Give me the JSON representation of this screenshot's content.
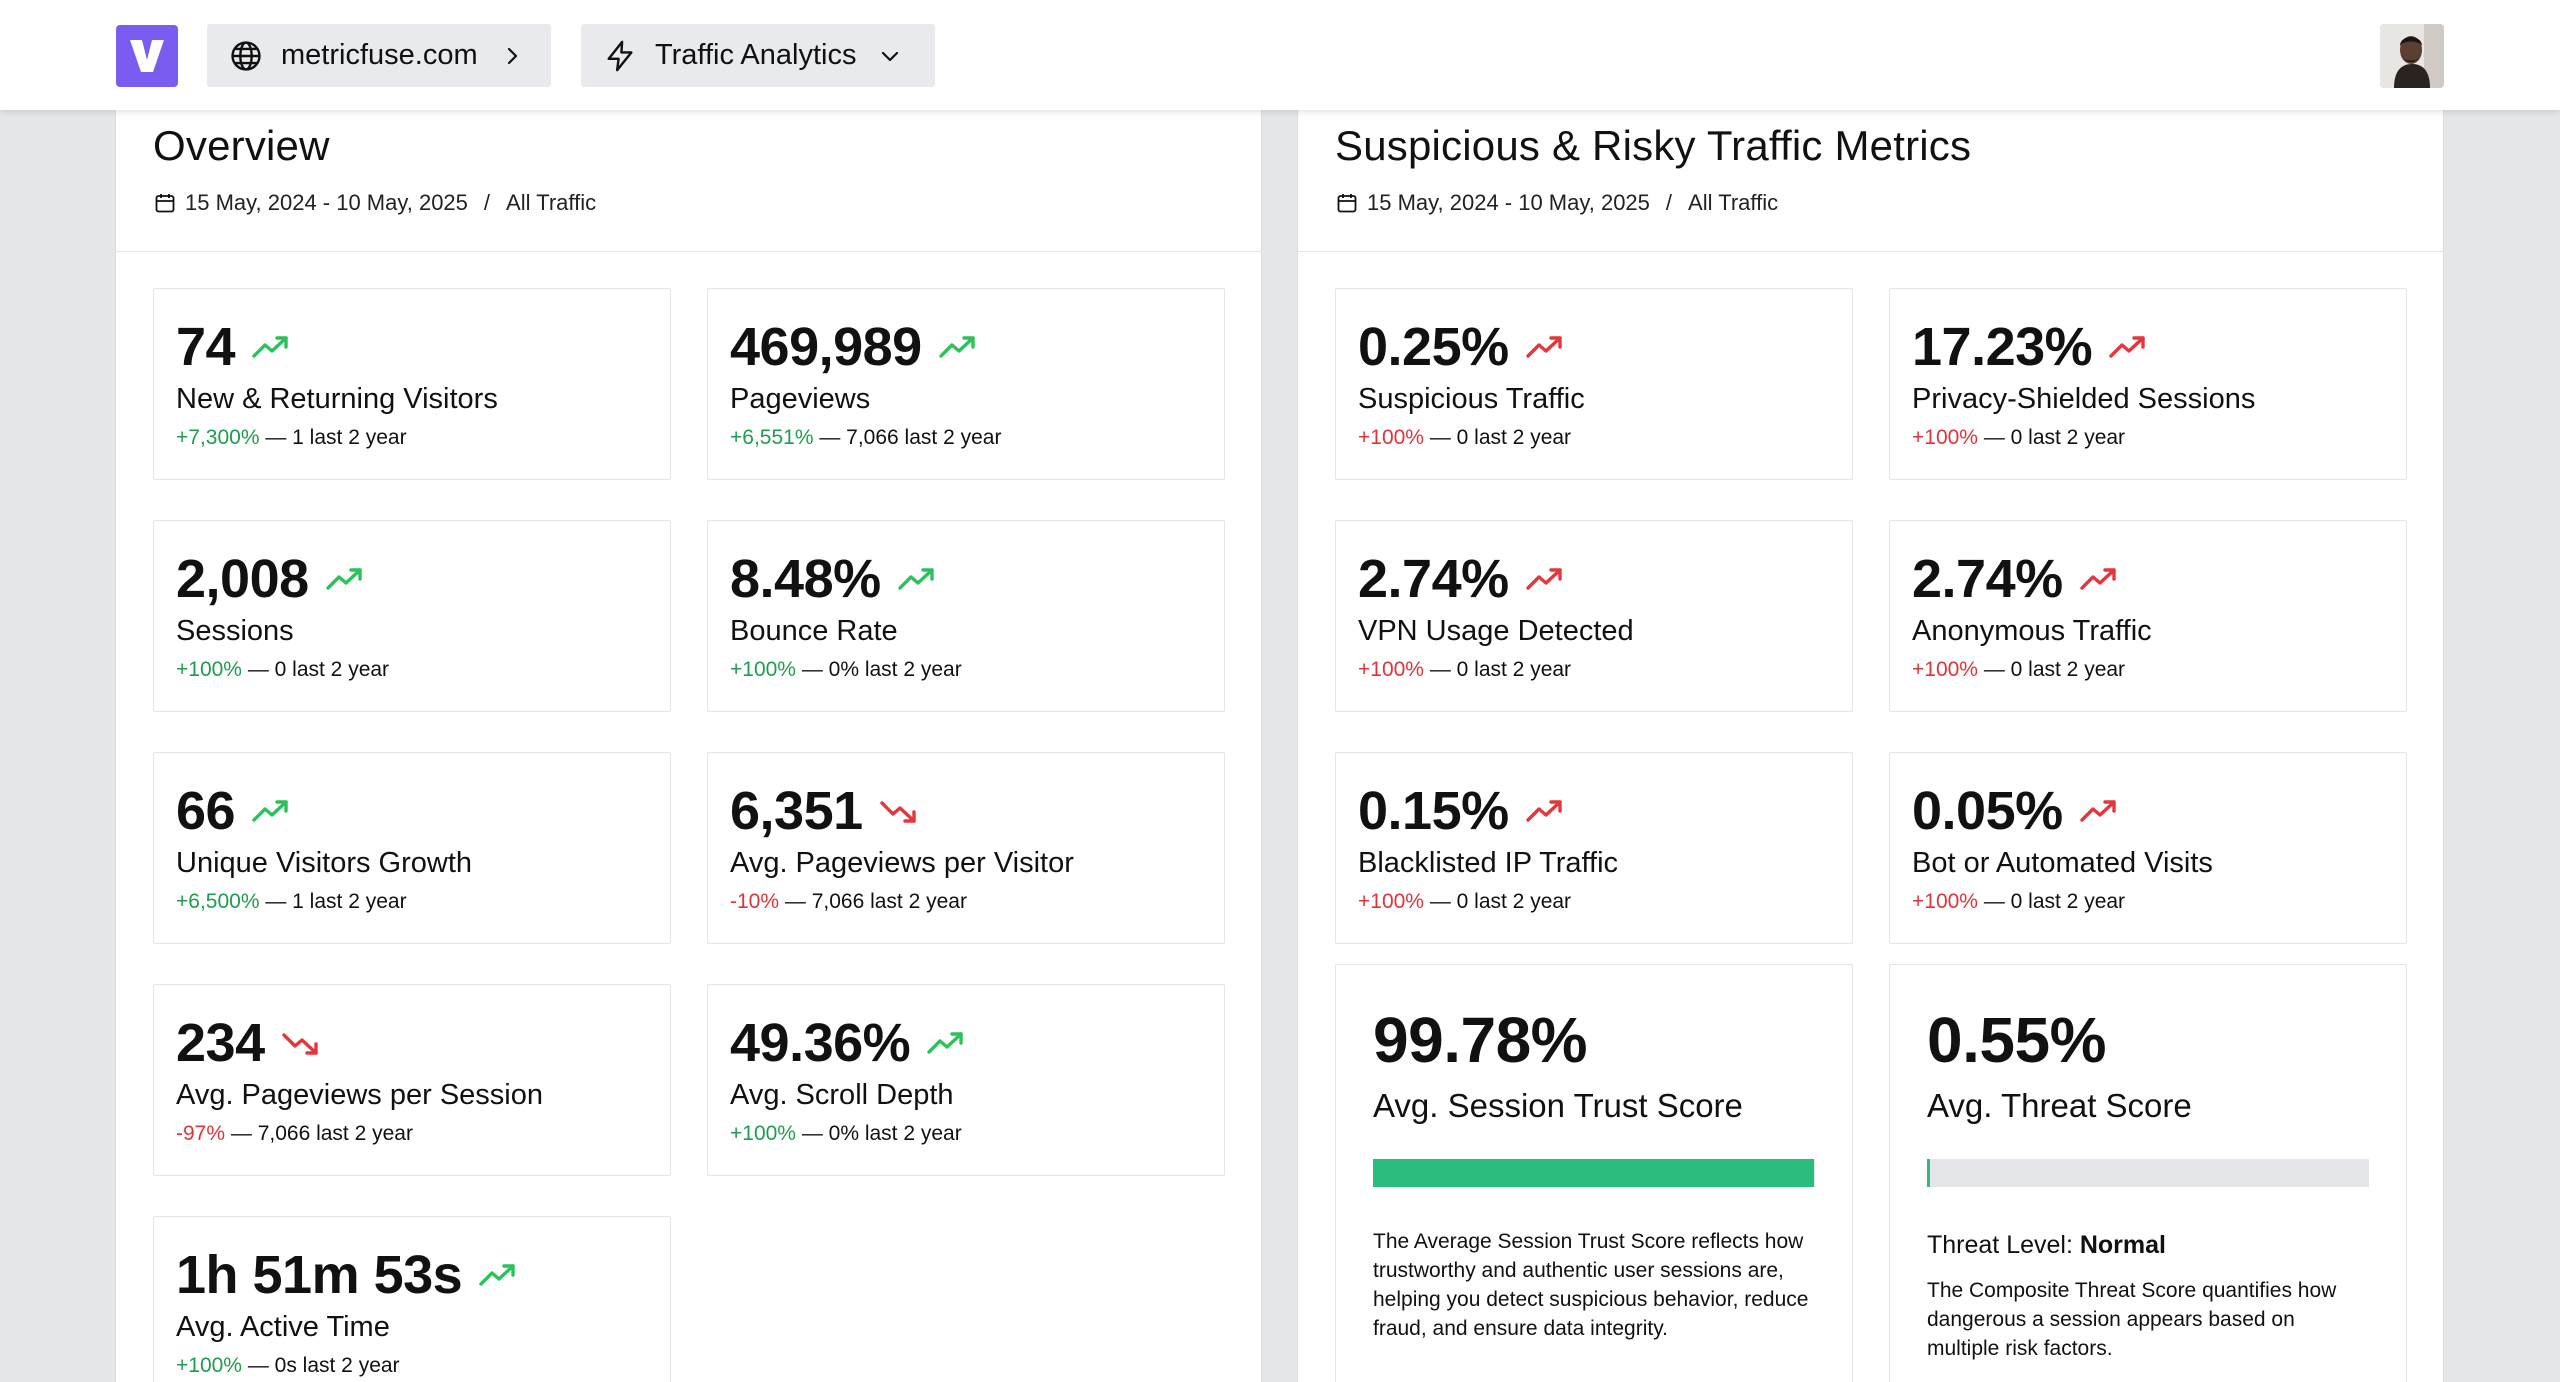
{
  "header": {
    "site": "metricfuse.com",
    "section": "Traffic Analytics",
    "logo_letter": "V",
    "brand_color": "#7b5cf0"
  },
  "overview": {
    "title": "Overview",
    "date_range": "15 May, 2024 - 10 May, 2025",
    "separator": "/",
    "segment": "All Traffic",
    "cards": [
      {
        "value": "74",
        "label": "New & Returning Visitors",
        "change": "+7,300%",
        "rest": " — 1 last 2 year",
        "trend": "up"
      },
      {
        "value": "469,989",
        "label": "Pageviews",
        "change": "+6,551%",
        "rest": " — 7,066 last 2 year",
        "trend": "up"
      },
      {
        "value": "2,008",
        "label": "Sessions",
        "change": "+100%",
        "rest": " — 0 last 2 year",
        "trend": "up"
      },
      {
        "value": "8.48%",
        "label": "Bounce Rate",
        "change": "+100%",
        "rest": " — 0% last 2 year",
        "trend": "up"
      },
      {
        "value": "66",
        "label": "Unique Visitors Growth",
        "change": "+6,500%",
        "rest": " — 1 last 2 year",
        "trend": "up"
      },
      {
        "value": "6,351",
        "label": "Avg. Pageviews per Visitor",
        "change": "-10%",
        "rest": " — 7,066 last 2 year",
        "trend": "down"
      },
      {
        "value": "234",
        "label": "Avg. Pageviews per Session",
        "change": "-97%",
        "rest": " — 7,066 last 2 year",
        "trend": "down"
      },
      {
        "value": "49.36%",
        "label": "Avg. Scroll Depth",
        "change": "+100%",
        "rest": " — 0% last 2 year",
        "trend": "up"
      },
      {
        "value": "1h 51m 53s",
        "label": "Avg. Active Time",
        "change": "+100%",
        "rest": " — 0s last 2 year",
        "trend": "up"
      }
    ]
  },
  "risky": {
    "title": "Suspicious & Risky Traffic Metrics",
    "date_range": "15 May, 2024 - 10 May, 2025",
    "separator": "/",
    "segment": "All Traffic",
    "cards": [
      {
        "value": "0.25%",
        "label": "Suspicious Traffic",
        "change": "+100%",
        "rest": " — 0 last 2 year",
        "trend": "up-red"
      },
      {
        "value": "17.23%",
        "label": "Privacy-Shielded Sessions",
        "change": "+100%",
        "rest": " — 0 last 2 year",
        "trend": "up-red"
      },
      {
        "value": "2.74%",
        "label": "VPN Usage Detected",
        "change": "+100%",
        "rest": " — 0 last 2 year",
        "trend": "up-red"
      },
      {
        "value": "2.74%",
        "label": "Anonymous Traffic",
        "change": "+100%",
        "rest": " — 0 last 2 year",
        "trend": "up-red"
      },
      {
        "value": "0.15%",
        "label": "Blacklisted IP Traffic",
        "change": "+100%",
        "rest": " — 0 last 2 year",
        "trend": "up-red"
      },
      {
        "value": "0.05%",
        "label": "Bot or Automated Visits",
        "change": "+100%",
        "rest": " — 0 last 2 year",
        "trend": "up-red"
      }
    ],
    "trust": {
      "value": "99.78%",
      "label": "Avg. Session Trust Score",
      "fill_fraction": 0.9978,
      "bar_color": "#2bbd7e",
      "description": "The Average Session Trust Score reflects how trustworthy and authentic user sessions are, helping you detect suspicious behavior, reduce fraud, and ensure data integrity."
    },
    "threat": {
      "value": "0.55%",
      "label": "Avg. Threat Score",
      "fill_fraction": 0.0055,
      "bar_color": "#2bbd7e",
      "level_label": "Threat Level: ",
      "level_value": "Normal",
      "description": "The Composite Threat Score quantifies how dangerous a session appears based on multiple risk factors."
    }
  },
  "colors": {
    "positive": "#1f9d4f",
    "negative": "#e0343a",
    "trend_up_green": "#2cc25a",
    "trend_red": "#e6363c"
  },
  "icons": {
    "globe": "globe-icon",
    "bolt": "bolt-icon",
    "calendar": "calendar-icon",
    "chevron_right": "chevron-right-icon",
    "chevron_down": "chevron-down-icon"
  }
}
